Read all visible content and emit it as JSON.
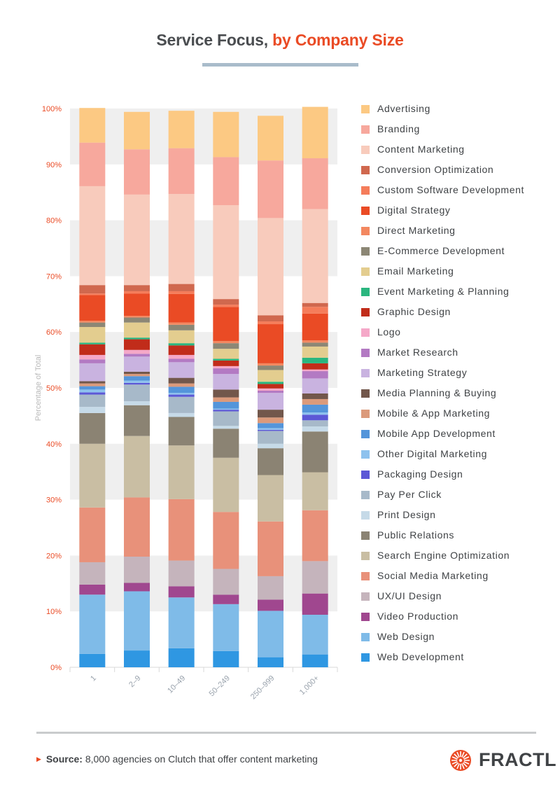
{
  "title": {
    "part1": "Service Focus,",
    "part2": "by Company Size"
  },
  "colors": {
    "accent": "#ea4b25",
    "dark_text": "#4a4d50",
    "band": "#efefef",
    "tick_text": "#ea4b25",
    "axis_label_text": "#b9b9b9"
  },
  "chart_data": {
    "type": "bar",
    "stacked": true,
    "y_unit": "percent",
    "ylabel": "Percentage of Total",
    "xlabel": "",
    "ylim": [
      0,
      100
    ],
    "yticks": [
      "0%",
      "10%",
      "20%",
      "30%",
      "40%",
      "50%",
      "60%",
      "70%",
      "80%",
      "90%",
      "100%"
    ],
    "categories": [
      "1",
      "2–9",
      "10–49",
      "50–249",
      "250–999",
      "1,000+"
    ],
    "series": [
      {
        "name": "Web Development",
        "color": "#2f97e2",
        "values": [
          2.4,
          3.0,
          3.4,
          2.9,
          1.8,
          2.3
        ]
      },
      {
        "name": "Web Design",
        "color": "#7fbbe8",
        "values": [
          10.6,
          10.6,
          9.1,
          8.4,
          8.3,
          7.1
        ]
      },
      {
        "name": "Video Production",
        "color": "#a0478f",
        "values": [
          1.8,
          1.5,
          2.0,
          1.7,
          2.0,
          3.8
        ]
      },
      {
        "name": "UX/UI Design",
        "color": "#c5b4bc",
        "values": [
          4.0,
          4.7,
          4.6,
          4.6,
          4.2,
          5.8
        ]
      },
      {
        "name": "Social Media Marketing",
        "color": "#e8917a",
        "values": [
          9.8,
          10.6,
          11.0,
          10.2,
          9.8,
          9.1
        ]
      },
      {
        "name": "Search Engine Optimization",
        "color": "#c9bea3",
        "values": [
          11.4,
          11.0,
          9.6,
          9.7,
          8.3,
          6.8
        ]
      },
      {
        "name": "Public Relations",
        "color": "#8b8373",
        "values": [
          5.5,
          5.5,
          5.1,
          5.2,
          4.8,
          7.3
        ]
      },
      {
        "name": "Print Design",
        "color": "#c6dae8",
        "values": [
          1.1,
          0.7,
          0.7,
          0.5,
          0.8,
          0.9
        ]
      },
      {
        "name": "Pay Per Click",
        "color": "#a7b9c9",
        "values": [
          2.2,
          3.0,
          2.9,
          2.6,
          2.3,
          1.1
        ]
      },
      {
        "name": "Packaging Design",
        "color": "#5c58d6",
        "values": [
          0.4,
          0.3,
          0.4,
          0.3,
          0.2,
          1.0
        ]
      },
      {
        "name": "Other Digital Marketing",
        "color": "#8ec2ee",
        "values": [
          0.5,
          0.4,
          0.3,
          0.2,
          0.3,
          0.4
        ]
      },
      {
        "name": "Mobile App Development",
        "color": "#5495da",
        "values": [
          0.6,
          0.8,
          1.1,
          1.2,
          0.9,
          1.4
        ]
      },
      {
        "name": "Mobile & App Marketing",
        "color": "#db9a7b",
        "values": [
          0.5,
          0.4,
          0.6,
          0.8,
          1.0,
          1.0
        ]
      },
      {
        "name": "Media Planning & Buying",
        "color": "#72574b",
        "values": [
          0.4,
          0.4,
          1.0,
          1.4,
          1.4,
          1.0
        ]
      },
      {
        "name": "Marketing Strategy",
        "color": "#c9b3e0",
        "values": [
          3.2,
          2.7,
          2.8,
          2.8,
          3.0,
          2.7
        ]
      },
      {
        "name": "Market Research",
        "color": "#b37ac3",
        "values": [
          0.7,
          0.5,
          0.6,
          1.0,
          0.4,
          1.3
        ]
      },
      {
        "name": "Logo",
        "color": "#f5a8c8",
        "values": [
          0.8,
          0.7,
          0.7,
          0.4,
          0.4,
          0.3
        ]
      },
      {
        "name": "Graphic Design",
        "color": "#c12c1a",
        "values": [
          1.9,
          1.9,
          1.7,
          1.0,
          0.8,
          1.1
        ]
      },
      {
        "name": "Event Marketing & Planning",
        "color": "#2ab67f",
        "values": [
          0.3,
          0.3,
          0.4,
          0.3,
          0.4,
          1.0
        ]
      },
      {
        "name": "Email Marketing",
        "color": "#e3cd8f",
        "values": [
          2.8,
          2.7,
          2.3,
          1.8,
          2.1,
          2.0
        ]
      },
      {
        "name": "E-Commerce Development",
        "color": "#8c8775",
        "values": [
          0.8,
          0.9,
          1.0,
          1.0,
          0.8,
          0.7
        ]
      },
      {
        "name": "Direct Marketing",
        "color": "#f38860",
        "values": [
          0.3,
          0.3,
          0.4,
          0.4,
          0.4,
          0.4
        ]
      },
      {
        "name": "Digital Strategy",
        "color": "#ea4b25",
        "values": [
          4.6,
          4.0,
          5.1,
          6.1,
          7.0,
          4.8
        ]
      },
      {
        "name": "Custom Software Development",
        "color": "#f57d5b",
        "values": [
          0.3,
          0.4,
          0.5,
          0.4,
          0.5,
          1.2
        ]
      },
      {
        "name": "Conversion Optimization",
        "color": "#d0684e",
        "values": [
          1.5,
          1.1,
          1.3,
          1.0,
          1.1,
          0.7
        ]
      },
      {
        "name": "Content Marketing",
        "color": "#f8cbbc",
        "values": [
          17.7,
          16.2,
          16.1,
          16.8,
          17.4,
          16.8
        ]
      },
      {
        "name": "Branding",
        "color": "#f7a89d",
        "values": [
          7.8,
          8.1,
          8.2,
          8.6,
          10.3,
          9.1
        ]
      },
      {
        "name": "Advertising",
        "color": "#fcc983",
        "values": [
          6.2,
          6.7,
          6.7,
          8.1,
          8.0,
          9.2
        ]
      }
    ]
  },
  "legend": [
    {
      "label": "Advertising",
      "color": "#fcc983"
    },
    {
      "label": "Branding",
      "color": "#f7a89d"
    },
    {
      "label": "Content Marketing",
      "color": "#f8cbbc"
    },
    {
      "label": "Conversion Optimization",
      "color": "#d0684e"
    },
    {
      "label": "Custom Software Development",
      "color": "#f57d5b"
    },
    {
      "label": "Digital Strategy",
      "color": "#ea4b25"
    },
    {
      "label": "Direct Marketing",
      "color": "#f38860"
    },
    {
      "label": "E-Commerce Development",
      "color": "#8c8775"
    },
    {
      "label": "Email Marketing",
      "color": "#e3cd8f"
    },
    {
      "label": "Event Marketing & Planning",
      "color": "#2ab67f"
    },
    {
      "label": "Graphic Design",
      "color": "#c12c1a"
    },
    {
      "label": "Logo",
      "color": "#f5a8c8"
    },
    {
      "label": "Market Research",
      "color": "#b37ac3"
    },
    {
      "label": "Marketing Strategy",
      "color": "#c9b3e0"
    },
    {
      "label": "Media Planning & Buying",
      "color": "#72574b"
    },
    {
      "label": "Mobile & App Marketing",
      "color": "#db9a7b"
    },
    {
      "label": "Mobile App Development",
      "color": "#5495da"
    },
    {
      "label": "Other Digital Marketing",
      "color": "#8ec2ee"
    },
    {
      "label": "Packaging Design",
      "color": "#5c58d6"
    },
    {
      "label": "Pay Per Click",
      "color": "#a7b9c9"
    },
    {
      "label": "Print Design",
      "color": "#c6dae8"
    },
    {
      "label": "Public Relations",
      "color": "#8b8373"
    },
    {
      "label": "Search Engine Optimization",
      "color": "#c9bea3"
    },
    {
      "label": "Social Media Marketing",
      "color": "#e8917a"
    },
    {
      "label": "UX/UI Design",
      "color": "#c5b4bc"
    },
    {
      "label": "Video Production",
      "color": "#a0478f"
    },
    {
      "label": "Web Design",
      "color": "#7fbbe8"
    },
    {
      "label": "Web Development",
      "color": "#2f97e2"
    }
  ],
  "footer": {
    "source_label": "Source:",
    "source_text": "8,000 agencies on Clutch that offer content marketing",
    "brand": "FRACTL",
    "brand_icon": "fractl-sunburst-icon"
  }
}
